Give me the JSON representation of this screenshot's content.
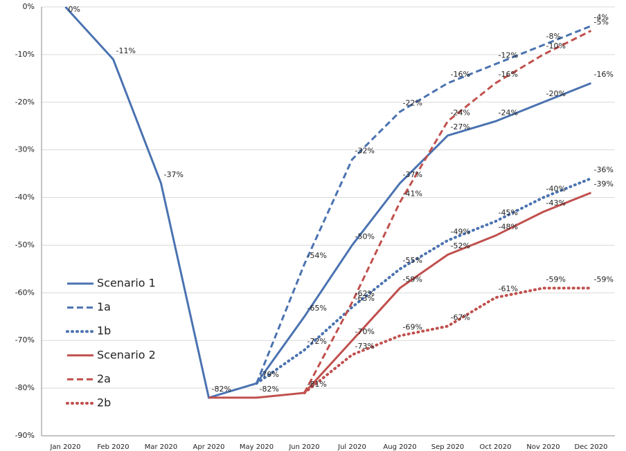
{
  "chart_data": {
    "type": "line",
    "categories": [
      "Jan 2020",
      "Feb 2020",
      "Mar 2020",
      "Apr 2020",
      "May 2020",
      "Jun 2020",
      "Jul 2020",
      "Aug 2020",
      "Sep 2020",
      "Oct 2020",
      "Nov 2020",
      "Dec 2020"
    ],
    "ylim": [
      -90,
      0
    ],
    "yticks": [
      {
        "value": -90,
        "label": "-90%"
      },
      {
        "value": -80,
        "label": "-80%"
      },
      {
        "value": -70,
        "label": "-70%"
      },
      {
        "value": -60,
        "label": "-60%"
      },
      {
        "value": -50,
        "label": "-50%"
      },
      {
        "value": -40,
        "label": "-40%"
      },
      {
        "value": -30,
        "label": "-30%"
      },
      {
        "value": -20,
        "label": "-20%"
      },
      {
        "value": -10,
        "label": "-10%"
      },
      {
        "value": 0,
        "label": "0%"
      }
    ],
    "grid": true,
    "series": [
      {
        "name": "Scenario 1",
        "color": "#4a72b0",
        "style": "solid",
        "values": [
          0,
          -11,
          -37,
          -82,
          -79,
          -65,
          -50,
          -37,
          -27,
          -24,
          -20,
          -16
        ],
        "value_labels": [
          "0%",
          "-11%",
          "-37%",
          "-82%",
          "-79%",
          "-65%",
          "-50%",
          "-37%",
          "-27%",
          "-24%",
          "-20%",
          "-16%"
        ]
      },
      {
        "name": "1a",
        "color": "#4a72b0",
        "style": "dashed",
        "values": [
          null,
          null,
          null,
          null,
          -79,
          -54,
          -32,
          -22,
          -16,
          -12,
          -8,
          -4
        ],
        "value_labels": [
          null,
          null,
          null,
          null,
          null,
          "-54%",
          "-32%",
          "-22%",
          "-16%",
          "-12%",
          "-8%",
          "-4%"
        ]
      },
      {
        "name": "1b",
        "color": "#4a72b0",
        "style": "dotted",
        "values": [
          null,
          null,
          null,
          null,
          -79,
          -72,
          -63,
          -55,
          -49,
          -45,
          -40,
          -36
        ],
        "value_labels": [
          null,
          null,
          null,
          null,
          null,
          "-72%",
          "-63%",
          "-55%",
          "-49%",
          "-45%",
          "-40%",
          "-36%"
        ]
      },
      {
        "name": "Scenario 2",
        "color": "#c0504d",
        "style": "solid",
        "values": [
          null,
          null,
          null,
          -82,
          -82,
          -81,
          -70,
          -59,
          -52,
          -48,
          -43,
          -39
        ],
        "value_labels": [
          null,
          null,
          null,
          null,
          "-82%",
          "-81%",
          "-70%",
          "-59%",
          "-52%",
          "-48%",
          "-43%",
          "-39%"
        ]
      },
      {
        "name": "2a",
        "color": "#c0504d",
        "style": "dashed",
        "values": [
          null,
          null,
          null,
          null,
          null,
          -81,
          -62,
          -41,
          -24,
          -16,
          -10,
          -5
        ],
        "value_labels": [
          null,
          null,
          null,
          null,
          null,
          null,
          "-62%",
          "-41%",
          "-24%",
          "-16%",
          "-10%",
          "-5%"
        ]
      },
      {
        "name": "2b",
        "color": "#c0504d",
        "style": "dotted",
        "values": [
          null,
          null,
          null,
          null,
          null,
          -81,
          -73,
          -69,
          -67,
          -61,
          -59,
          -59
        ],
        "value_labels": [
          null,
          null,
          null,
          null,
          null,
          null,
          "-73%",
          "-69%",
          "-67%",
          "-61%",
          "-59%",
          "-59%"
        ]
      }
    ]
  }
}
